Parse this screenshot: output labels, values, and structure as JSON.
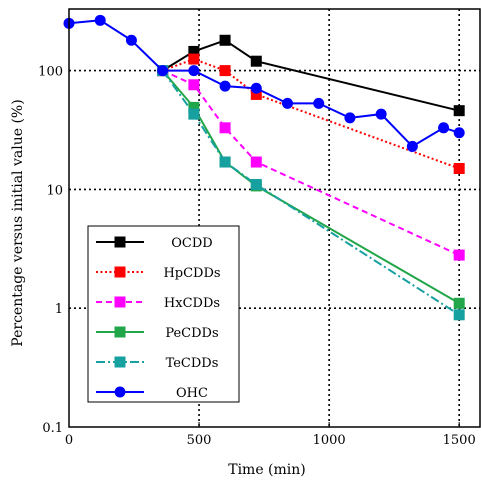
{
  "chart_data": {
    "type": "line",
    "xlabel": "Time (min)",
    "ylabel": "Percentage versus initial value (%)",
    "x_scale": "linear",
    "y_scale": "log",
    "xlim": [
      0,
      1580
    ],
    "ylim": [
      0.1,
      330
    ],
    "x_ticks": [
      0,
      500,
      1000,
      1500
    ],
    "x_tick_labels": [
      "0",
      "500",
      "1000",
      "1500"
    ],
    "y_ticks": [
      0.1,
      1,
      10,
      100
    ],
    "y_tick_labels": [
      "0.1",
      "1",
      "10",
      "100"
    ],
    "grid": true,
    "legend_position": "lower-left",
    "series": [
      {
        "name": "OCDD",
        "color": "#000000",
        "line_style": "solid",
        "marker": "square",
        "x": [
          360,
          480,
          600,
          720,
          1500
        ],
        "y": [
          100,
          145,
          180,
          120,
          46
        ]
      },
      {
        "name": "HpCDDs",
        "color": "#ff0000",
        "line_style": "dotted",
        "marker": "square",
        "x": [
          360,
          480,
          600,
          720,
          1500
        ],
        "y": [
          100,
          125,
          100,
          63,
          15
        ]
      },
      {
        "name": "HxCDDs",
        "color": "#ff00ff",
        "line_style": "dashed",
        "marker": "square",
        "x": [
          360,
          480,
          600,
          720,
          1500
        ],
        "y": [
          100,
          76,
          33,
          17,
          2.8
        ]
      },
      {
        "name": "PeCDDs",
        "color": "#22a64a",
        "line_style": "solid",
        "marker": "square",
        "x": [
          360,
          480,
          600,
          720,
          1500
        ],
        "y": [
          100,
          49,
          17,
          10.7,
          1.1
        ]
      },
      {
        "name": "TeCDDs",
        "color": "#16a0a0",
        "line_style": "dashdot",
        "marker": "square",
        "x": [
          360,
          480,
          600,
          720,
          1500
        ],
        "y": [
          100,
          43,
          17,
          11,
          0.88
        ]
      },
      {
        "name": "OHC",
        "color": "#0000ff",
        "line_style": "solid",
        "marker": "circle",
        "x": [
          0,
          120,
          240,
          360,
          480,
          600,
          720,
          840,
          960,
          1080,
          1200,
          1320,
          1440,
          1500
        ],
        "y": [
          250,
          265,
          180,
          100,
          100,
          74,
          71,
          53,
          53,
          40,
          43,
          23,
          33,
          30
        ]
      }
    ]
  }
}
